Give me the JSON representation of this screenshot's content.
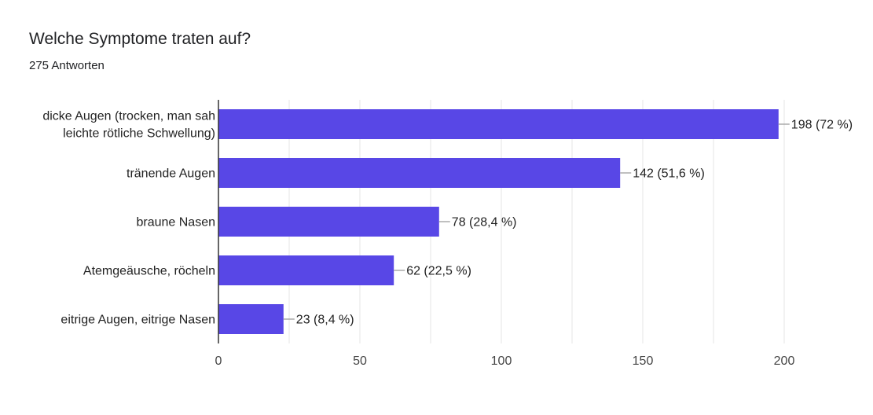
{
  "header": {
    "title": "Welche Symptome traten auf?",
    "subtitle": "275 Antworten"
  },
  "colors": {
    "bar": "#5847e6",
    "gridline": "#e6e6e6",
    "axis": "#333333",
    "leader": "#aaaaaa"
  },
  "chart_data": {
    "type": "bar",
    "orientation": "horizontal",
    "categories": [
      [
        "dicke Augen (trocken, man sah",
        "leichte rötliche Schwellung)"
      ],
      [
        "tränende Augen"
      ],
      [
        "braune Nasen"
      ],
      [
        "Atemgeäusche, röcheln"
      ],
      [
        "eitrige Augen, eitrige Nasen"
      ]
    ],
    "values": [
      198,
      142,
      78,
      62,
      23
    ],
    "data_labels": [
      "198 (72 %)",
      "142 (51,6 %)",
      "78 (28,4 %)",
      "62 (22,5 %)",
      "23 (8,4 %)"
    ],
    "xlim": [
      0,
      200
    ],
    "xticks": [
      0,
      50,
      100,
      150,
      200
    ],
    "grid": true,
    "legend": "none"
  }
}
